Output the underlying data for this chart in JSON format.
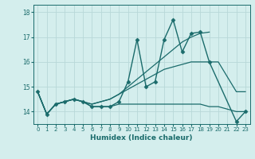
{
  "title": "",
  "xlabel": "Humidex (Indice chaleur)",
  "ylabel": "",
  "background_color": "#d4eeed",
  "grid_color": "#b8d8d8",
  "line_color": "#1a6b6b",
  "xlim": [
    -0.5,
    23.5
  ],
  "ylim": [
    13.5,
    18.3
  ],
  "yticks": [
    14,
    15,
    16,
    17,
    18
  ],
  "xticks": [
    0,
    1,
    2,
    3,
    4,
    5,
    6,
    7,
    8,
    9,
    10,
    11,
    12,
    13,
    14,
    15,
    16,
    17,
    18,
    19,
    20,
    21,
    22,
    23
  ],
  "series": [
    {
      "x": [
        0,
        1,
        2,
        3,
        4,
        5,
        6,
        7,
        8,
        9,
        10,
        11,
        12,
        13,
        14,
        15,
        16,
        17,
        18,
        19,
        22,
        23
      ],
      "y": [
        14.8,
        13.9,
        14.3,
        14.4,
        14.5,
        14.4,
        14.2,
        14.2,
        14.2,
        14.4,
        15.2,
        16.9,
        15.0,
        15.2,
        16.9,
        17.7,
        16.4,
        17.15,
        17.2,
        16.0,
        13.6,
        14.0
      ],
      "marker": "D",
      "markersize": 2.5,
      "linewidth": 1.0,
      "linestyle": "-"
    },
    {
      "x": [
        0,
        1,
        2,
        3,
        4,
        5,
        6,
        7,
        8,
        9,
        10,
        11,
        12,
        13,
        14,
        15,
        16,
        17,
        18,
        19
      ],
      "y": [
        14.8,
        13.9,
        14.3,
        14.4,
        14.5,
        14.4,
        14.3,
        14.4,
        14.5,
        14.7,
        15.0,
        15.3,
        15.6,
        15.9,
        16.2,
        16.5,
        16.8,
        17.0,
        17.15,
        17.2
      ],
      "marker": null,
      "markersize": 0,
      "linewidth": 0.9,
      "linestyle": "-"
    },
    {
      "x": [
        0,
        1,
        2,
        3,
        4,
        5,
        6,
        7,
        8,
        9,
        10,
        11,
        12,
        13,
        14,
        15,
        16,
        17,
        18,
        19,
        20,
        22,
        23
      ],
      "y": [
        14.8,
        13.9,
        14.3,
        14.4,
        14.5,
        14.4,
        14.3,
        14.4,
        14.5,
        14.7,
        14.9,
        15.1,
        15.3,
        15.5,
        15.7,
        15.8,
        15.9,
        16.0,
        16.0,
        16.0,
        16.0,
        14.8,
        14.8
      ],
      "marker": null,
      "markersize": 0,
      "linewidth": 0.9,
      "linestyle": "-"
    },
    {
      "x": [
        0,
        1,
        2,
        3,
        4,
        5,
        6,
        7,
        8,
        9,
        10,
        11,
        12,
        13,
        14,
        15,
        16,
        17,
        18,
        19,
        20,
        22,
        23
      ],
      "y": [
        14.8,
        13.9,
        14.3,
        14.4,
        14.5,
        14.4,
        14.2,
        14.2,
        14.2,
        14.3,
        14.3,
        14.3,
        14.3,
        14.3,
        14.3,
        14.3,
        14.3,
        14.3,
        14.3,
        14.2,
        14.2,
        14.0,
        14.0
      ],
      "marker": null,
      "markersize": 0,
      "linewidth": 0.9,
      "linestyle": "-"
    }
  ]
}
